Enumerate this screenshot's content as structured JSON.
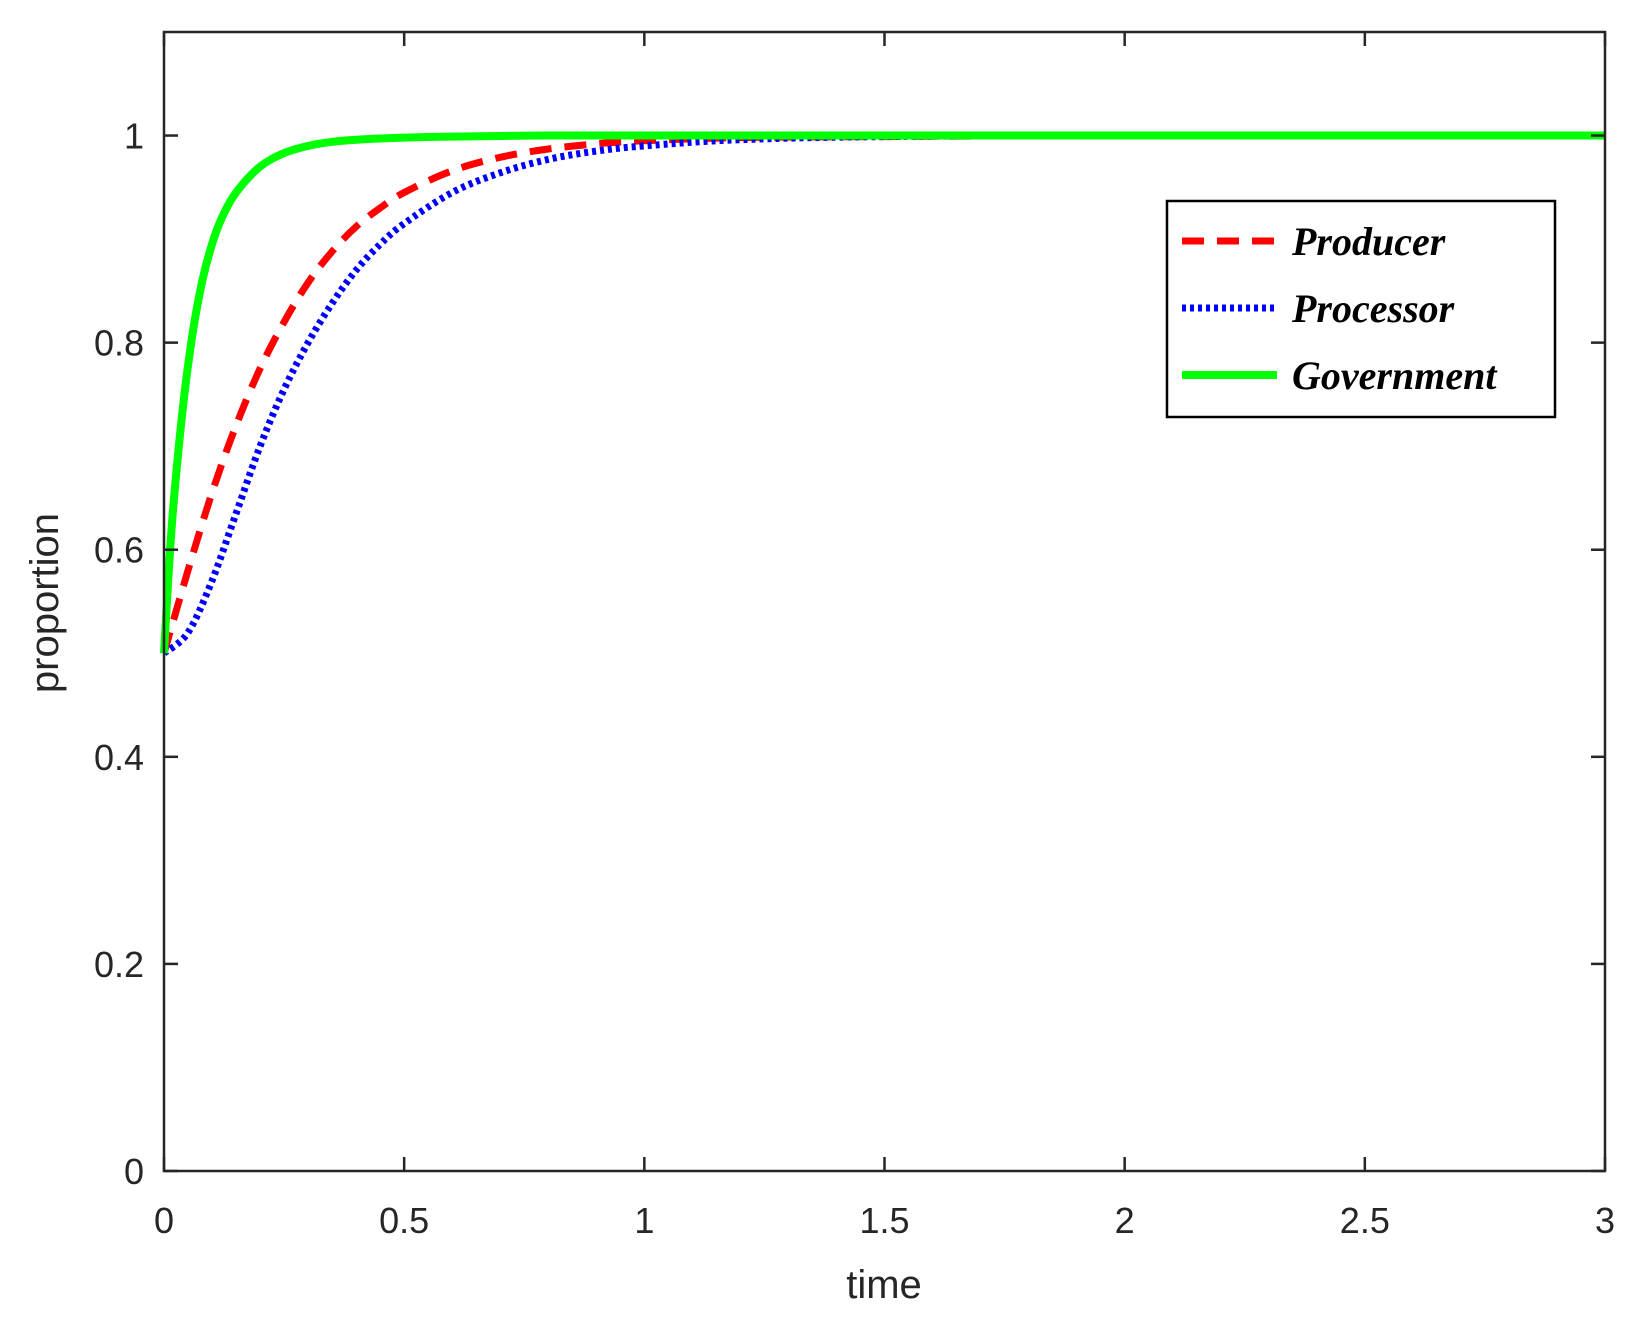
{
  "chart_data": {
    "type": "line",
    "title": "",
    "xlabel": "time",
    "ylabel": "proportion",
    "xlim": [
      0,
      3
    ],
    "ylim": [
      0,
      1.1
    ],
    "xticks": [
      0,
      0.5,
      1,
      1.5,
      2,
      2.5,
      3
    ],
    "xtick_labels": [
      "0",
      "0.5",
      "1",
      "1.5",
      "2",
      "2.5",
      "3"
    ],
    "yticks": [
      0,
      0.2,
      0.4,
      0.6,
      0.8,
      1
    ],
    "ytick_labels": [
      "0",
      "0.2",
      "0.4",
      "0.6",
      "0.8",
      "1"
    ],
    "grid": false,
    "legend_position": "top-right",
    "series": [
      {
        "name": "Producer",
        "style": "dashed",
        "color": "#ff0000",
        "x": [
          0,
          0.05,
          0.1,
          0.15,
          0.2,
          0.25,
          0.3,
          0.35,
          0.4,
          0.45,
          0.5,
          0.6,
          0.7,
          0.8,
          0.9,
          1.0,
          1.2,
          1.5,
          2.0,
          2.5,
          3.0
        ],
        "y": [
          0.5,
          0.58,
          0.655,
          0.72,
          0.775,
          0.82,
          0.858,
          0.888,
          0.912,
          0.93,
          0.945,
          0.966,
          0.979,
          0.987,
          0.992,
          0.995,
          0.998,
          0.999,
          1.0,
          1.0,
          1.0
        ]
      },
      {
        "name": "Processor",
        "style": "dotted",
        "color": "#0000ff",
        "x": [
          0,
          0.05,
          0.1,
          0.15,
          0.2,
          0.25,
          0.3,
          0.35,
          0.4,
          0.45,
          0.5,
          0.6,
          0.7,
          0.8,
          0.9,
          1.0,
          1.2,
          1.5,
          2.0,
          2.5,
          3.0
        ],
        "y": [
          0.5,
          0.52,
          0.57,
          0.635,
          0.7,
          0.755,
          0.8,
          0.838,
          0.87,
          0.895,
          0.915,
          0.945,
          0.964,
          0.977,
          0.985,
          0.99,
          0.996,
          0.999,
          1.0,
          1.0,
          1.0
        ]
      },
      {
        "name": "Government",
        "style": "solid",
        "color": "#00ff00",
        "x": [
          0,
          0.01,
          0.02,
          0.04,
          0.06,
          0.08,
          0.1,
          0.12,
          0.15,
          0.2,
          0.25,
          0.3,
          0.35,
          0.4,
          0.5,
          0.6,
          0.8,
          1.0,
          1.5,
          2.0,
          2.5,
          3.0
        ],
        "y": [
          0.5,
          0.58,
          0.645,
          0.74,
          0.81,
          0.86,
          0.895,
          0.92,
          0.945,
          0.97,
          0.983,
          0.99,
          0.994,
          0.996,
          0.998,
          0.999,
          1.0,
          1.0,
          1.0,
          1.0,
          1.0,
          1.0
        ]
      }
    ]
  }
}
